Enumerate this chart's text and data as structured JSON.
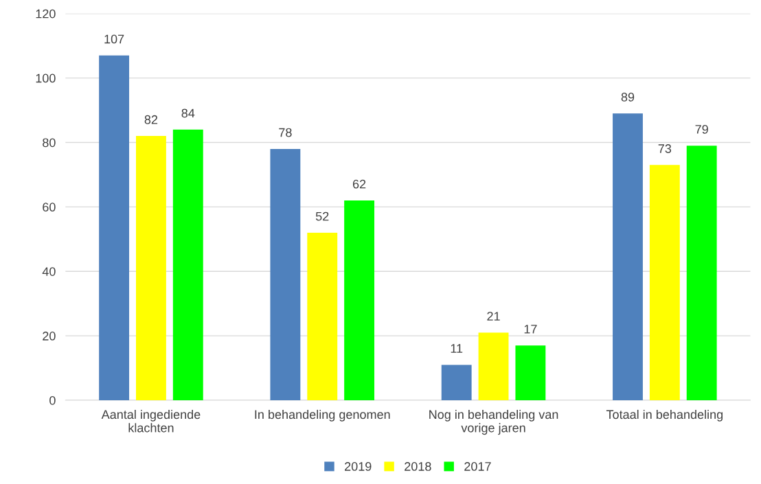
{
  "chart_data": {
    "type": "bar",
    "categories": [
      "Aantal ingediende\nklachten",
      "In behandeling genomen",
      "Nog in behandeling van\nvorige jaren",
      "Totaal in behandeling"
    ],
    "series": [
      {
        "name": "2019",
        "color": "#4f81bd",
        "values": [
          107,
          78,
          11,
          89
        ]
      },
      {
        "name": "2018",
        "color": "#ffff00",
        "values": [
          82,
          52,
          21,
          73
        ]
      },
      {
        "name": "2017",
        "color": "#00ff00",
        "values": [
          84,
          62,
          17,
          79
        ]
      }
    ],
    "ylim": [
      0,
      120
    ],
    "yticks": [
      0,
      20,
      40,
      60,
      80,
      100,
      120
    ],
    "grid": "y",
    "legend": "bottom",
    "data_labels": true
  }
}
